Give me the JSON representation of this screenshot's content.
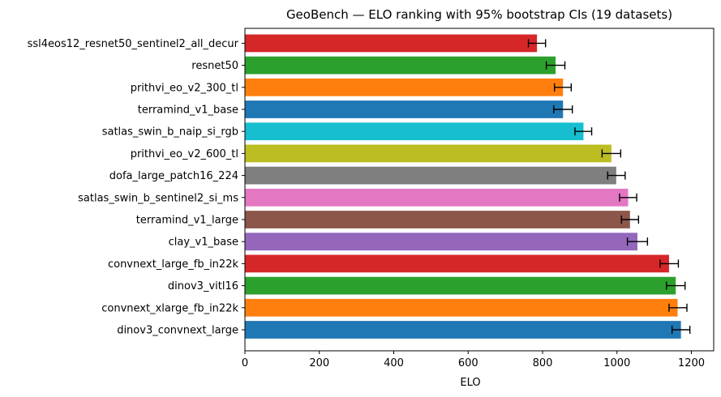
{
  "chart_data": {
    "type": "bar",
    "orientation": "horizontal",
    "title": "GeoBench — ELO ranking with 95% bootstrap CIs (19 datasets)",
    "xlabel": "ELO",
    "ylabel": "",
    "xlim": [
      0,
      1260
    ],
    "xticks": [
      0,
      200,
      400,
      600,
      800,
      1000,
      1200
    ],
    "grid": false,
    "legend": "none",
    "categories": [
      "dinov3_convnext_large",
      "convnext_xlarge_fb_in22k",
      "dinov3_vitl16",
      "convnext_large_fb_in22k",
      "clay_v1_base",
      "terramind_v1_large",
      "satlas_swin_b_sentinel2_si_ms",
      "dofa_large_patch16_224",
      "prithvi_eo_v2_600_tl",
      "satlas_swin_b_naip_si_rgb",
      "terramind_v1_base",
      "prithvi_eo_v2_300_tl",
      "resnet50",
      "ssl4eos12_resnet50_sentinel2_all_decur"
    ],
    "values": [
      1172,
      1163,
      1158,
      1140,
      1055,
      1035,
      1030,
      998,
      985,
      910,
      855,
      855,
      835,
      785
    ],
    "ci_low": [
      1148,
      1140,
      1133,
      1116,
      1028,
      1012,
      1007,
      975,
      960,
      887,
      830,
      832,
      810,
      762
    ],
    "ci_high": [
      1196,
      1188,
      1183,
      1165,
      1082,
      1058,
      1053,
      1022,
      1010,
      932,
      880,
      877,
      860,
      808
    ],
    "colors": [
      "#1f77b4",
      "#ff7f0e",
      "#2ca02c",
      "#d62728",
      "#9467bd",
      "#8c564b",
      "#e377c2",
      "#7f7f7f",
      "#bcbd22",
      "#17becf",
      "#1f77b4",
      "#ff7f0e",
      "#2ca02c",
      "#d62728"
    ]
  }
}
